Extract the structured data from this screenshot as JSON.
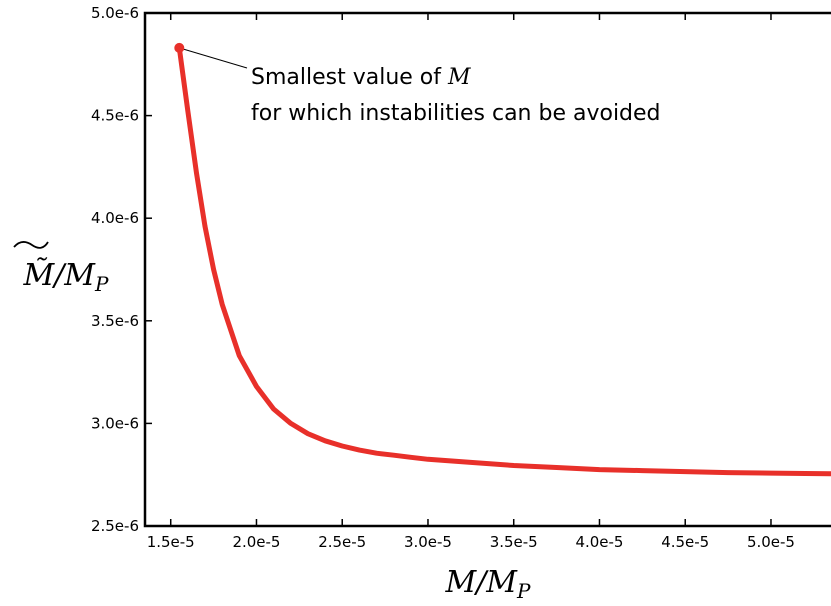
{
  "chart_data": {
    "type": "line",
    "title": "",
    "xlabel": "M/M_P",
    "ylabel": "M̃/M_P",
    "xlim": [
      1.35e-05,
      5.35e-05
    ],
    "ylim": [
      2.5e-06,
      5e-06
    ],
    "x_ticks": [
      1.5e-05,
      2e-05,
      2.5e-05,
      3e-05,
      3.5e-05,
      4e-05,
      4.5e-05,
      5e-05
    ],
    "x_tick_labels": [
      "1.5e-5",
      "2.0e-5",
      "2.5e-5",
      "3.0e-5",
      "3.5e-5",
      "4.0e-5",
      "4.5e-5",
      "5.0e-5"
    ],
    "y_ticks": [
      2.5e-06,
      3e-06,
      3.5e-06,
      4e-06,
      4.5e-06,
      5e-06
    ],
    "y_tick_labels": [
      "2.5e-6",
      "3.0e-6",
      "3.5e-6",
      "4.0e-6",
      "4.5e-6",
      "5.0e-6"
    ],
    "grid": false,
    "series": [
      {
        "color": "#e8302a",
        "x": [
          1.55e-05,
          1.6e-05,
          1.65e-05,
          1.7e-05,
          1.75e-05,
          1.8e-05,
          1.9e-05,
          2e-05,
          2.1e-05,
          2.2e-05,
          2.3e-05,
          2.4e-05,
          2.5e-05,
          2.6e-05,
          2.7e-05,
          2.8e-05,
          2.9e-05,
          3e-05,
          3.25e-05,
          3.5e-05,
          3.75e-05,
          4e-05,
          4.25e-05,
          4.5e-05,
          4.75e-05,
          5e-05,
          5.2e-05,
          5.35e-05
        ],
        "y": [
          4.83e-06,
          4.52e-06,
          4.22e-06,
          3.96e-06,
          3.75e-06,
          3.58e-06,
          3.33e-06,
          3.18e-06,
          3.07e-06,
          3e-06,
          2.95e-06,
          2.915e-06,
          2.89e-06,
          2.87e-06,
          2.855e-06,
          2.845e-06,
          2.835e-06,
          2.825e-06,
          2.81e-06,
          2.795e-06,
          2.785e-06,
          2.775e-06,
          2.77e-06,
          2.765e-06,
          2.76e-06,
          2.758e-06,
          2.756e-06,
          2.755e-06
        ]
      }
    ],
    "annotation": {
      "line1_prefix": "Smallest value of ",
      "line1_symbol": "M",
      "line2": "for which instabilities can be avoided",
      "point_x": 1.55e-05,
      "point_y": 4.83e-06
    }
  }
}
